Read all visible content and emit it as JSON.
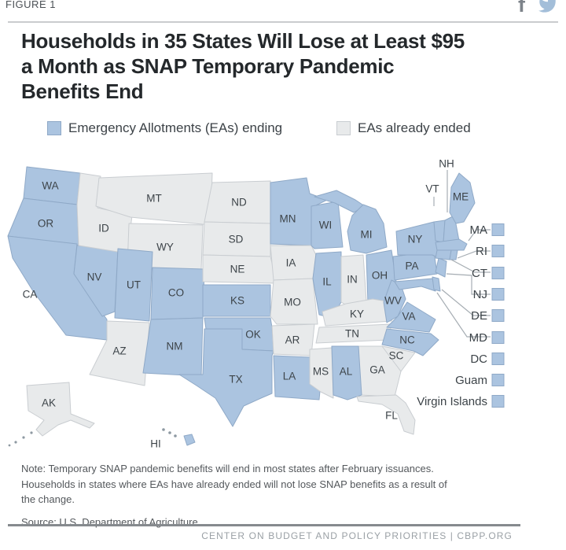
{
  "figure_label": "FIGURE 1",
  "title_lines": [
    "Households in 35 States Will Lose at Least $95",
    "a Month as SNAP Temporary Pandemic",
    "Benefits End"
  ],
  "social_icons": [
    "facebook-icon",
    "twitter-icon"
  ],
  "legend": {
    "ending_label": "Emergency Allotments (EAs) ending",
    "ended_label": "EAs already ended"
  },
  "colors": {
    "ending_fill": "#abc4e0",
    "ending_border": "#8fa9c7",
    "ended_fill": "#e8eaeb",
    "ended_border": "#c9cdd1",
    "island_dot": "#8e99a2"
  },
  "chart_data": {
    "type": "choropleth",
    "region": "United States",
    "title": "Households in 35 States Will Lose at Least $95 a Month as SNAP Temporary Pandemic Benefits End",
    "categories": [
      "Emergency Allotments (EAs) ending",
      "EAs already ended"
    ],
    "states_ending": [
      "WA",
      "OR",
      "CA",
      "NV",
      "UT",
      "CO",
      "NM",
      "KS",
      "OK",
      "TX",
      "LA",
      "MN",
      "WI",
      "IL",
      "MI",
      "OH",
      "AL",
      "WV",
      "VA",
      "NC",
      "PA",
      "NY",
      "VT",
      "NH",
      "ME",
      "MA",
      "CT",
      "RI",
      "NJ",
      "DE",
      "MD",
      "HI",
      "DC",
      "Guam",
      "Virgin Islands"
    ],
    "states_ended": [
      "ID",
      "MT",
      "WY",
      "AZ",
      "ND",
      "SD",
      "NE",
      "IA",
      "MO",
      "AR",
      "MS",
      "IN",
      "KY",
      "TN",
      "SC",
      "GA",
      "FL",
      "AK"
    ]
  },
  "map": {
    "labels_on_map": [
      "WA",
      "OR",
      "CA",
      "NV",
      "ID",
      "MT",
      "WY",
      "UT",
      "CO",
      "AZ",
      "NM",
      "ND",
      "SD",
      "NE",
      "KS",
      "OK",
      "TX",
      "MN",
      "IA",
      "MO",
      "AR",
      "LA",
      "MS",
      "WI",
      "MI",
      "IL",
      "IN",
      "OH",
      "KY",
      "TN",
      "AL",
      "GA",
      "SC",
      "NC",
      "VA",
      "WV",
      "FL",
      "PA",
      "NY",
      "ME",
      "VT",
      "NH",
      "AK",
      "HI"
    ],
    "callouts": [
      "MA",
      "RI",
      "CT",
      "NJ",
      "DE",
      "MD",
      "DC",
      "Guam",
      "Virgin Islands"
    ]
  },
  "note_lines": [
    "Note: Temporary SNAP pandemic benefits will end in most states after February issuances.",
    "Households in states where EAs have already ended will not lose SNAP benefits as a result of",
    "the change."
  ],
  "source": "Source: U.S. Department of Agriculture",
  "footer": "CENTER ON BUDGET AND POLICY PRIORITIES | CBPP.ORG"
}
